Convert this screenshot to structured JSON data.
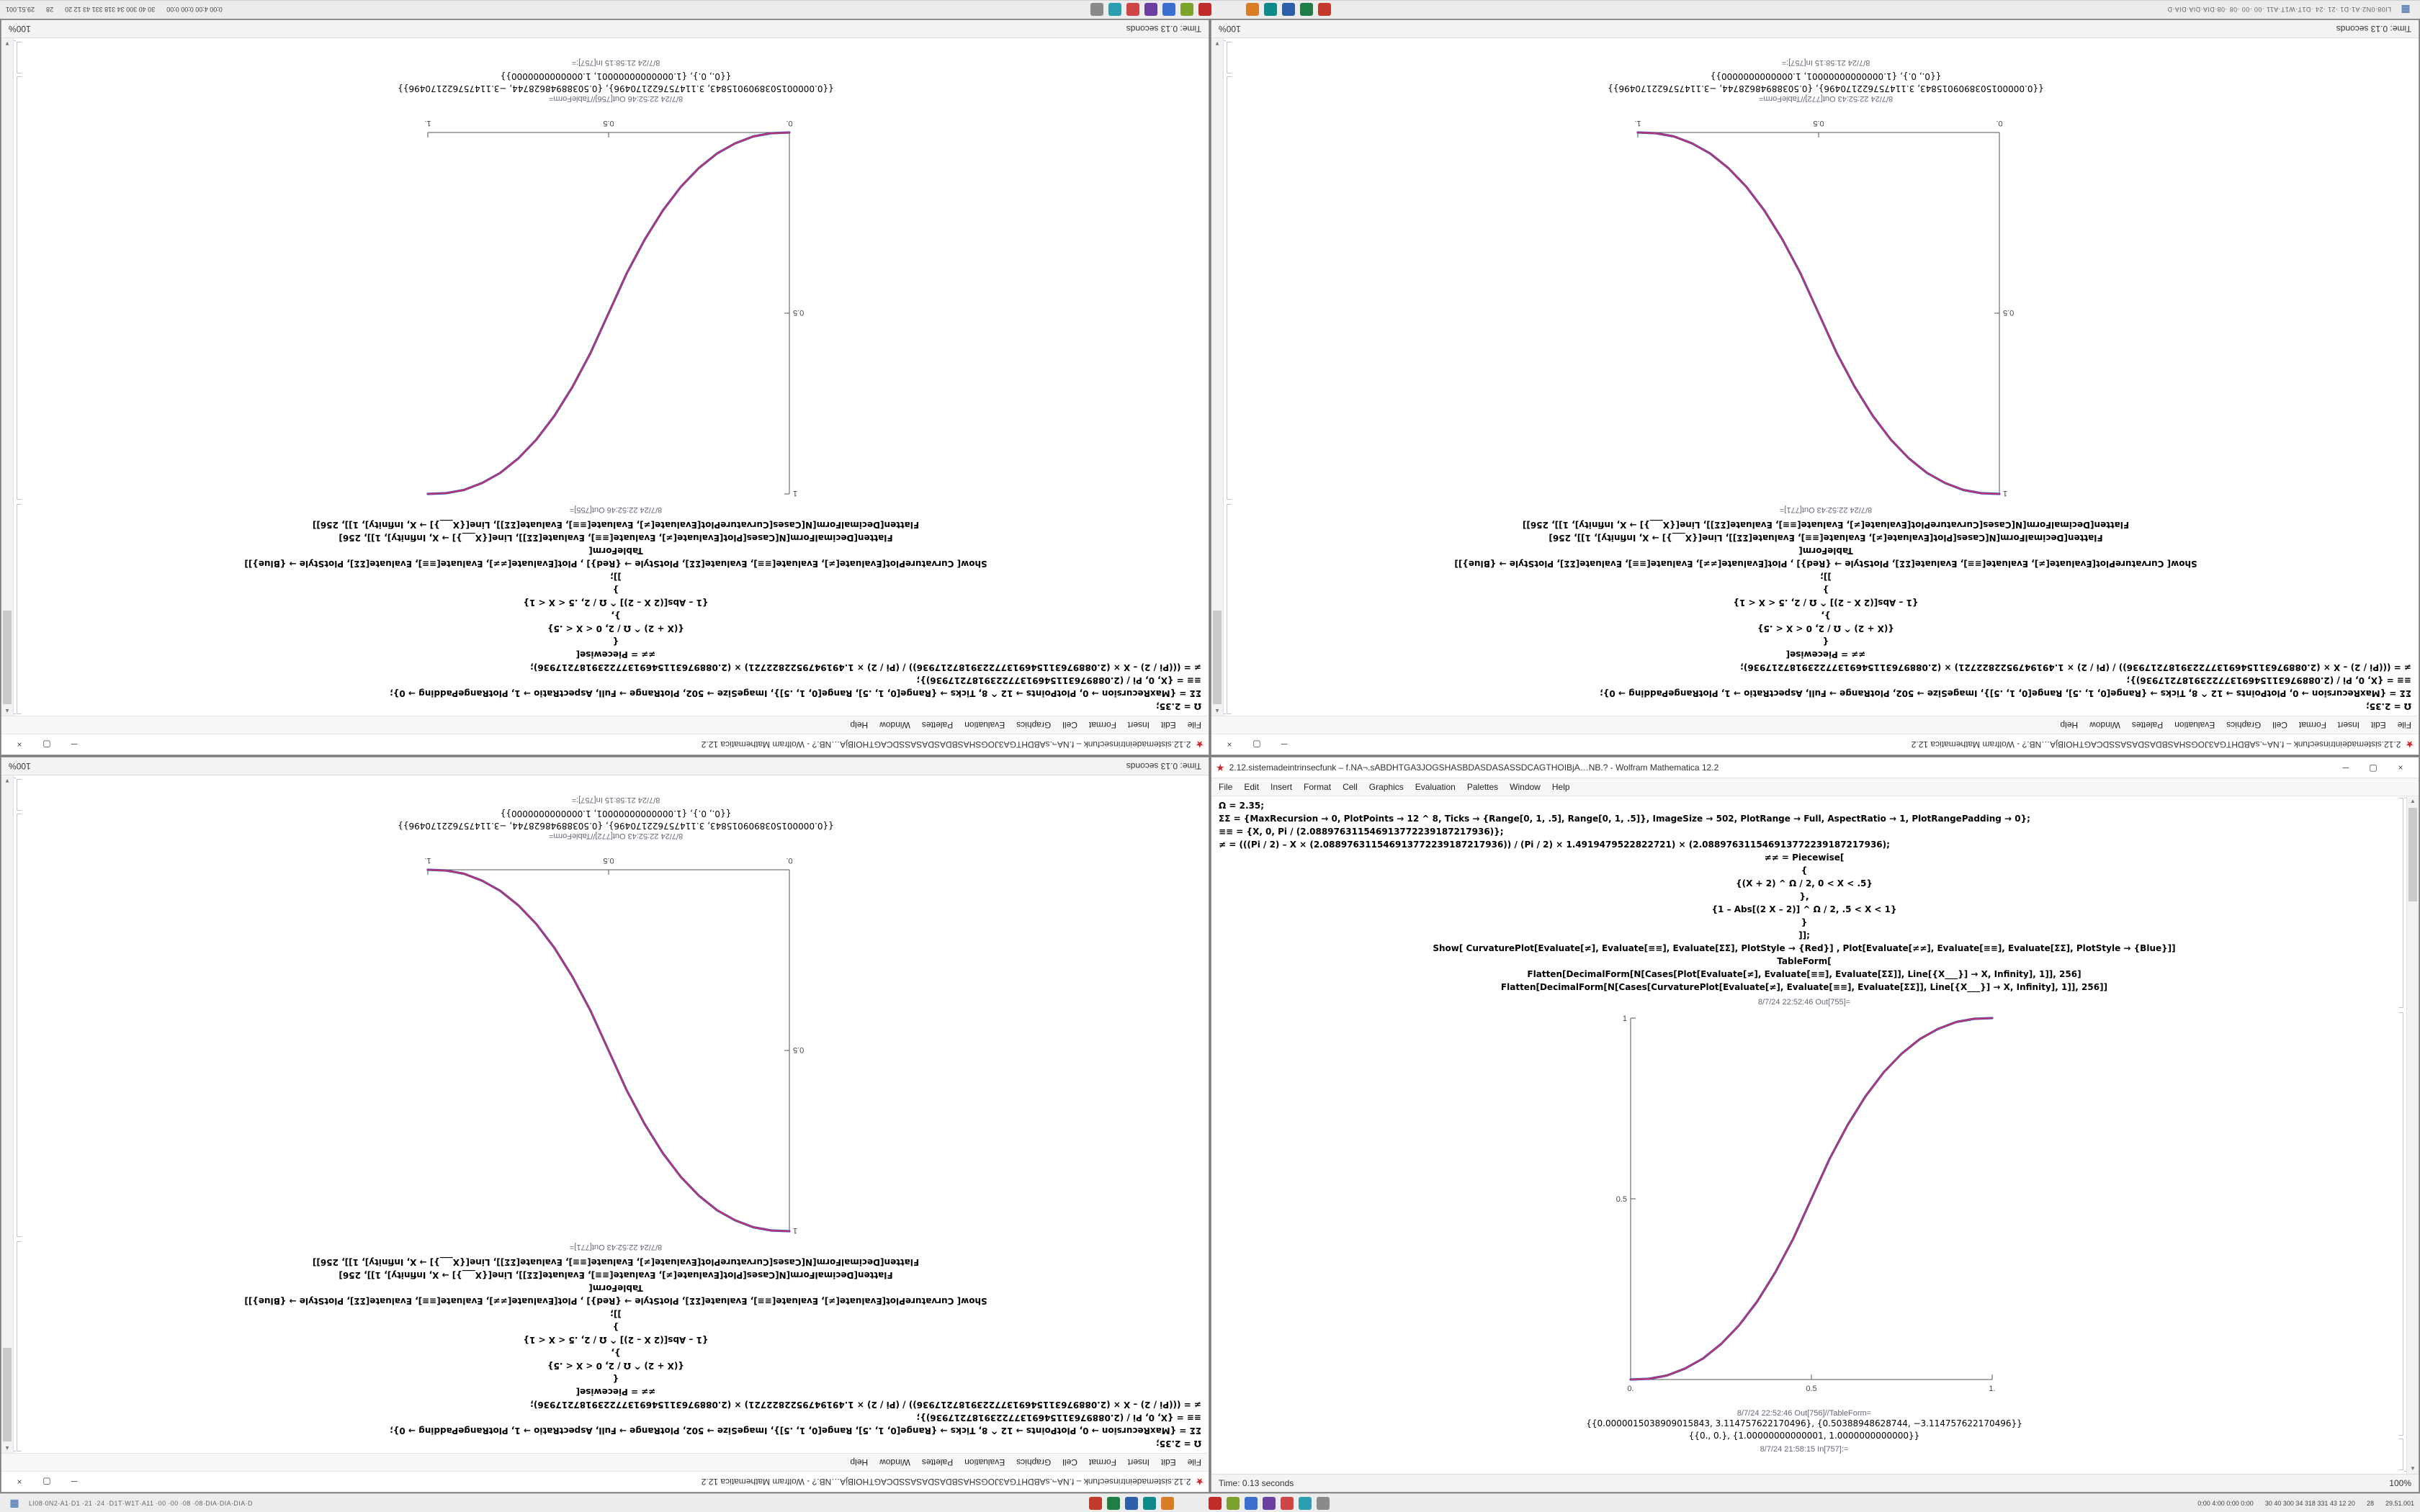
{
  "icons": {
    "minimize": "─",
    "maximize": "▢",
    "close": "×",
    "start": "▦",
    "app": "★",
    "scroll_up": "▲",
    "scroll_down": "▼"
  },
  "taskbar": {
    "left_text": "LI08·0N2·A1·D1 ·21 ·24 ·D1T·W1T·A11 ·00 ·00 ·08 ·08·DIA·DIA·DIA·D",
    "icons_left": [
      {
        "name": "app-red-icon",
        "color": "#c23a2b"
      },
      {
        "name": "app-green-icon",
        "color": "#1e7e45"
      },
      {
        "name": "app-blue-icon",
        "color": "#2b5fa8"
      },
      {
        "name": "app-teal-icon",
        "color": "#0e8a8a"
      },
      {
        "name": "app-orange-icon",
        "color": "#d97c26"
      }
    ],
    "icons_right": [
      {
        "name": "app-red-icon",
        "color": "#c02b2b"
      },
      {
        "name": "app-lime-icon",
        "color": "#7ca32b"
      },
      {
        "name": "app-blue-icon",
        "color": "#3a6fd0"
      },
      {
        "name": "app-purple-icon",
        "color": "#6b3fa0"
      },
      {
        "name": "app-red-icon",
        "color": "#d04545"
      },
      {
        "name": "app-cyan-icon",
        "color": "#2b9fb0"
      },
      {
        "name": "app-gray-icon",
        "color": "#8a8a8a"
      }
    ],
    "tray": [
      "0:00 4:00 0:00 0:00",
      "30 40 300 34 318 331 43 12 20",
      "28",
      "29.51.001"
    ]
  },
  "window_a": {
    "plot_index": 0,
    "title": "2.12.sistemadeintrinsecfunk – f.NA¬.sABDHTGA3JOGSHASBDASDASASSDCAGTHOIBjA…NB.? - Wolfram Mathematica 12.2",
    "menus": [
      "File",
      "Edit",
      "Insert",
      "Format",
      "Cell",
      "Graphics",
      "Evaluation",
      "Palettes",
      "Window",
      "Help"
    ],
    "code_lines": [
      {
        "text": "Ω = 2.35;",
        "align": "left"
      },
      {
        "text": "ΣΣ = {MaxRecursion → 0, PlotPoints → 12 ^ 8, Ticks → {Range[0, 1, .5], Range[0, 1, .5]}, ImageSize → 502, PlotRange → Full, AspectRatio → 1, PlotRangePadding → 0};",
        "align": "left"
      },
      {
        "text": "≡≡ = {X, 0, Pi / (2.088976311546913772239187217936)};",
        "align": "left"
      },
      {
        "text": "≠ = (((Pi / 2) – X × (2.088976311546913772239187217936)) / (Pi / 2) × 1.4919479522822721) × (2.088976311546913772239187217936);",
        "align": "left"
      },
      {
        "text": "≠≠ = Piecewise[",
        "align": "center"
      },
      {
        "text": "{",
        "align": "center"
      },
      {
        "text": "{(X + 2) ^ Ω / 2, 0 < X < .5}",
        "align": "center"
      },
      {
        "text": "},",
        "align": "center"
      },
      {
        "text": "{1 – Abs[(2 X – 2)] ^ Ω / 2, .5 < X < 1}",
        "align": "center"
      },
      {
        "text": "}",
        "align": "center"
      },
      {
        "text": "]];",
        "align": "center"
      },
      {
        "text": "Show[ CurvaturePlot[Evaluate[≠], Evaluate[≡≡], Evaluate[ΣΣ], PlotStyle → {Red}] , Plot[Evaluate[≠≠], Evaluate[≡≡], Evaluate[ΣΣ], PlotStyle → {Blue}]]",
        "align": "center"
      },
      {
        "text": "TableForm[",
        "align": "center"
      },
      {
        "text": "Flatten[DecimalForm[N[Cases[Plot[Evaluate[≠], Evaluate[≡≡], Evaluate[ΣΣ]], Line[{X___}] → X, Infinity], 1]], 256]",
        "align": "center"
      },
      {
        "text": "Flatten[DecimalForm[N[Cases[CurvaturePlot[Evaluate[≠], Evaluate[≡≡], Evaluate[ΣΣ]], Line[{X___}] → X, Infinity], 1]], 256]]",
        "align": "center"
      }
    ],
    "out_label": "8/7/24 22:52:46 Out[755]=",
    "table_label": "8/7/24 22:52:46 Out[756]//TableForm=",
    "table_lines": [
      "{{0.0000015038909015843, 3.114757622170496}, {0.50388948628744, −3.114757622170496}}",
      "{{0., 0.}, {1.00000000000001, 1.0000000000000}}"
    ],
    "in_footer": "8/7/24 21:58:15 In[757]:=",
    "status_left": "Time: 0.13 seconds",
    "status_right": "100%"
  },
  "window_b": {
    "plot_index": 1,
    "title": "2.12.sistemadeintrinsecfunk – f.NA¬.sABDHTGA3JOGSHASBDASDASASSDCAGTHOIBjA…NB.? - Wolfram Mathematica 12.2",
    "menus": [
      "File",
      "Edit",
      "Insert",
      "Format",
      "Cell",
      "Graphics",
      "Evaluation",
      "Palettes",
      "Window",
      "Help"
    ],
    "code_lines": [
      {
        "text": "Ω = 2.35;",
        "align": "left"
      },
      {
        "text": "ΣΣ = {MaxRecursion → 0, PlotPoints → 12 ^ 8, Ticks → {Range[0, 1, .5], Range[0, 1, .5]}, ImageSize → 502, PlotRange → Full, AspectRatio → 1, PlotRangePadding → 0};",
        "align": "left"
      },
      {
        "text": "≡≡ = {X, 0, Pi / (2.088976311546913772239187217936)};",
        "align": "left"
      },
      {
        "text": "≠ = (((Pi / 2) – X × (2.088976311546913772239187217936)) / (Pi / 2) × 1.4919479522822721) × (2.088976311546913772239187217936);",
        "align": "left"
      },
      {
        "text": "≠≠ = Piecewise[",
        "align": "center"
      },
      {
        "text": "{",
        "align": "center"
      },
      {
        "text": "{(X + 2) ^ Ω / 2, 0 < X < .5}",
        "align": "center"
      },
      {
        "text": "},",
        "align": "center"
      },
      {
        "text": "{1 – Abs[(2 X – 2)] ^ Ω / 2, .5 < X < 1}",
        "align": "center"
      },
      {
        "text": "}",
        "align": "center"
      },
      {
        "text": "]];",
        "align": "center"
      },
      {
        "text": "Show[ CurvaturePlot[Evaluate[≠], Evaluate[≡≡], Evaluate[ΣΣ], PlotStyle → {Red}] , Plot[Evaluate[≠≠], Evaluate[≡≡], Evaluate[ΣΣ], PlotStyle → {Blue}]]",
        "align": "center"
      },
      {
        "text": "TableForm[",
        "align": "center"
      },
      {
        "text": "Flatten[DecimalForm[N[Cases[Plot[Evaluate[≠], Evaluate[≡≡], Evaluate[ΣΣ]], Line[{X___}] → X, Infinity], 1]], 256]",
        "align": "center"
      },
      {
        "text": "Flatten[DecimalForm[N[Cases[CurvaturePlot[Evaluate[≠], Evaluate[≡≡], Evaluate[ΣΣ]], Line[{X___}] → X, Infinity], 1]], 256]]",
        "align": "center"
      }
    ],
    "out_label": "8/7/24 22:52:43 Out[771]=",
    "table_label": "8/7/24 22:52:43 Out[772]//TableForm=",
    "table_lines": [
      "{{0.0000015038909015843, 3.114757622170496}, {0.50388948628744, −3.114757622170496}}",
      "{{0., 0.}, {1.00000000000001, 1.0000000000000}}"
    ],
    "in_footer": "8/7/24 21:58:15 In[757]:=",
    "status_left": "Time: 0.13 seconds",
    "status_right": "100%"
  },
  "chart_data": [
    {
      "type": "line",
      "title": "",
      "xlabel": "",
      "ylabel": "",
      "xlim": [
        0,
        1
      ],
      "ylim": [
        0,
        1
      ],
      "xticks": [
        0,
        0.5,
        1
      ],
      "yticks": [
        0,
        0.5,
        1
      ],
      "xtick_labels": [
        "0.",
        "0.5",
        "1."
      ],
      "ytick_labels": [
        "0.",
        "0.5",
        "1"
      ],
      "grid": false,
      "legend": false,
      "x": [
        0,
        0.05,
        0.1,
        0.15,
        0.2,
        0.25,
        0.3,
        0.35,
        0.4,
        0.45,
        0.5,
        0.55,
        0.6,
        0.65,
        0.7,
        0.75,
        0.8,
        0.85,
        0.9,
        0.95,
        1
      ],
      "series": [
        {
          "name": "Plot (Blue)",
          "color": "#3a4fc1",
          "width": 3.2,
          "y": [
            0,
            0.002,
            0.011,
            0.03,
            0.058,
            0.098,
            0.15,
            0.216,
            0.296,
            0.39,
            0.5,
            0.61,
            0.704,
            0.784,
            0.85,
            0.902,
            0.942,
            0.97,
            0.989,
            0.998,
            1
          ]
        },
        {
          "name": "CurvaturePlot (Red)",
          "color": "#d03060",
          "width": 1.8,
          "y": [
            0,
            0.002,
            0.011,
            0.03,
            0.058,
            0.098,
            0.15,
            0.216,
            0.296,
            0.39,
            0.5,
            0.61,
            0.704,
            0.784,
            0.85,
            0.902,
            0.942,
            0.97,
            0.989,
            0.998,
            1
          ]
        }
      ]
    },
    {
      "type": "line",
      "title": "",
      "xlabel": "",
      "ylabel": "",
      "xlim": [
        0,
        1
      ],
      "ylim": [
        0,
        1
      ],
      "xticks": [
        0,
        0.5,
        1
      ],
      "yticks": [
        0,
        0.5,
        1
      ],
      "xtick_labels": [
        "0.",
        "0.5",
        "1."
      ],
      "ytick_labels": [
        "0.",
        "0.5",
        "1"
      ],
      "grid": false,
      "legend": false,
      "x": [
        0,
        0.05,
        0.1,
        0.15,
        0.2,
        0.25,
        0.3,
        0.35,
        0.4,
        0.45,
        0.5,
        0.55,
        0.6,
        0.65,
        0.7,
        0.75,
        0.8,
        0.85,
        0.9,
        0.95,
        1
      ],
      "series": [
        {
          "name": "Plot (Blue)",
          "color": "#3a4fc1",
          "width": 3.2,
          "y": [
            1,
            0.998,
            0.989,
            0.97,
            0.942,
            0.902,
            0.85,
            0.784,
            0.704,
            0.61,
            0.5,
            0.39,
            0.296,
            0.216,
            0.15,
            0.098,
            0.058,
            0.03,
            0.011,
            0.002,
            0
          ]
        },
        {
          "name": "CurvaturePlot (Red)",
          "color": "#d03060",
          "width": 1.8,
          "y": [
            1,
            0.998,
            0.989,
            0.97,
            0.942,
            0.902,
            0.85,
            0.784,
            0.704,
            0.61,
            0.5,
            0.39,
            0.296,
            0.216,
            0.15,
            0.098,
            0.058,
            0.03,
            0.011,
            0.002,
            0
          ]
        }
      ]
    }
  ]
}
